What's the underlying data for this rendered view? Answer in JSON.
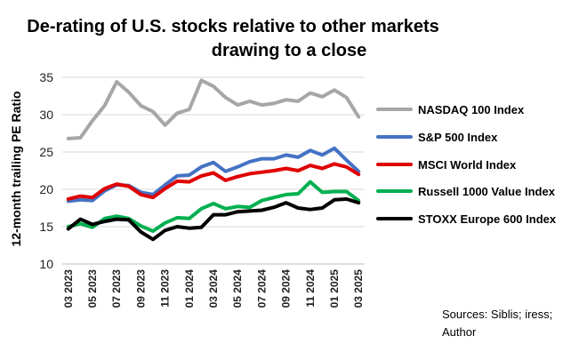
{
  "chart_data": {
    "type": "line",
    "title_lines": [
      "De-rating of U.S. stocks relative to other markets",
      "drawing to a close"
    ],
    "ylabel": "12-month trailing PE Ratio",
    "xlabel": "",
    "ylim": [
      10,
      35
    ],
    "yticks": [
      10,
      15,
      20,
      25,
      30,
      35
    ],
    "grid": true,
    "legend_position": "right",
    "x": [
      "03 2023",
      "04 2023",
      "05 2023",
      "06 2023",
      "07 2023",
      "08 2023",
      "09 2023",
      "10 2023",
      "11 2023",
      "12 2023",
      "01 2024",
      "02 2024",
      "03 2024",
      "04 2024",
      "05 2024",
      "06 2024",
      "07 2024",
      "08 2024",
      "09 2024",
      "10 2024",
      "11 2024",
      "12 2024",
      "01 2025",
      "02 2025",
      "03 2025"
    ],
    "x_tick_labels": [
      "03 2023",
      "",
      "05 2023",
      "",
      "07 2023",
      "",
      "09 2023",
      "",
      "11 2023",
      "",
      "01 2024",
      "",
      "03 2024",
      "",
      "05 2024",
      "",
      "07 2024",
      "",
      "09 2024",
      "",
      "11 2024",
      "",
      "01 2025",
      "",
      "03 2025"
    ],
    "series": [
      {
        "name": "NASDAQ 100 Index",
        "color": "#a6a6a6",
        "values": [
          26.8,
          26.9,
          29.2,
          31.2,
          34.4,
          33.0,
          31.2,
          30.4,
          28.6,
          30.2,
          30.7,
          34.6,
          33.8,
          32.3,
          31.3,
          31.8,
          31.3,
          31.5,
          32.0,
          31.8,
          32.9,
          32.4,
          33.3,
          32.3,
          29.7
        ]
      },
      {
        "name": "S&P 500 Index",
        "color": "#4472c4",
        "values": [
          18.4,
          18.6,
          18.5,
          19.8,
          20.6,
          20.5,
          19.6,
          19.3,
          20.6,
          21.8,
          21.9,
          23.0,
          23.6,
          22.4,
          23.0,
          23.7,
          24.1,
          24.1,
          24.6,
          24.3,
          25.2,
          24.6,
          25.5,
          23.9,
          22.4
        ]
      },
      {
        "name": "MSCI World Index",
        "color": "#e00000",
        "values": [
          18.7,
          19.1,
          18.9,
          20.1,
          20.7,
          20.4,
          19.3,
          18.9,
          20.1,
          21.1,
          21.0,
          21.8,
          22.2,
          21.2,
          21.7,
          22.1,
          22.3,
          22.5,
          22.8,
          22.5,
          23.2,
          22.8,
          23.4,
          23.0,
          22.0
        ]
      },
      {
        "name": "Russell 1000 Value Index",
        "color": "#00b050",
        "values": [
          15.0,
          15.4,
          14.9,
          16.1,
          16.4,
          16.1,
          15.1,
          14.4,
          15.5,
          16.2,
          16.1,
          17.4,
          18.1,
          17.4,
          17.7,
          17.6,
          18.5,
          18.9,
          19.3,
          19.4,
          21.0,
          19.6,
          19.7,
          19.7,
          18.5
        ]
      },
      {
        "name": "STOXX Europe 600 Index",
        "color": "#000000",
        "values": [
          14.7,
          16.0,
          15.3,
          15.7,
          16.0,
          15.9,
          14.3,
          13.3,
          14.5,
          15.0,
          14.8,
          14.9,
          16.6,
          16.6,
          17.0,
          17.1,
          17.2,
          17.6,
          18.2,
          17.5,
          17.3,
          17.5,
          18.6,
          18.7,
          18.2
        ]
      }
    ]
  },
  "source_lines": [
    "Sources: Siblis; iress;",
    "Author"
  ]
}
